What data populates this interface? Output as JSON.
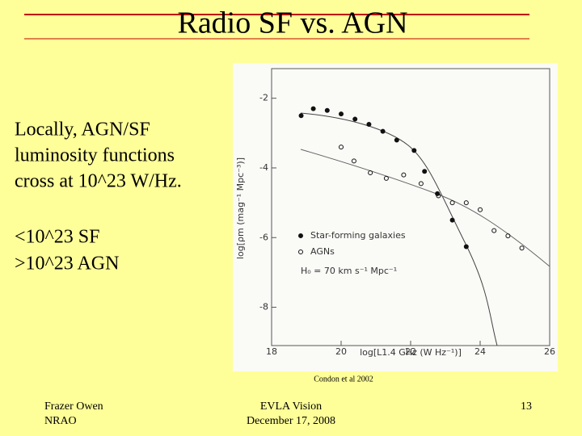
{
  "slide": {
    "title": "Radio SF vs. AGN",
    "body": [
      "Locally, AGN/SF",
      "luminosity functions",
      "cross at 10^23 W/Hz.",
      "<10^23 SF",
      ">10^23 AGN"
    ],
    "caption": "Condon et al 2002",
    "footer": {
      "left": [
        "Frazer Owen",
        "NRAO"
      ],
      "center": [
        "EVLA Vision",
        "December 17, 2008"
      ],
      "page": "13"
    }
  },
  "figure": {
    "xlabel": "log[L1.4 GHz (W Hz⁻¹)]",
    "ylabel": "log[ρm (mag⁻¹ Mpc⁻³)]",
    "xlim": [
      18,
      26
    ],
    "ylim": [
      -9.1,
      -1.15
    ],
    "xticks": [
      18,
      20,
      22,
      24,
      26
    ],
    "yticks": [
      -2,
      -4,
      -6,
      -8
    ],
    "series": [
      {
        "name": "Star-forming galaxies",
        "marker": "filled",
        "x": [
          18.85,
          19.2,
          19.6,
          20.0,
          20.4,
          20.8,
          21.2,
          21.6,
          22.1,
          22.4,
          22.77,
          23.2,
          23.6
        ],
        "values": [
          -2.5,
          -2.3,
          -2.35,
          -2.45,
          -2.6,
          -2.75,
          -2.95,
          -3.2,
          -3.5,
          -4.1,
          -4.74,
          -5.5,
          -6.26
        ]
      },
      {
        "name": "AGNs",
        "marker": "open",
        "x": [
          20.0,
          20.37,
          20.84,
          21.3,
          21.8,
          22.3,
          22.8,
          23.2,
          23.6,
          24.0,
          24.4,
          24.8,
          25.2
        ],
        "values": [
          -3.4,
          -3.8,
          -4.14,
          -4.3,
          -4.2,
          -4.45,
          -4.8,
          -5.0,
          -5.0,
          -5.2,
          -5.8,
          -5.95,
          -6.3
        ]
      }
    ],
    "note": "H₀ = 70 km s⁻¹ Mpc⁻¹"
  }
}
